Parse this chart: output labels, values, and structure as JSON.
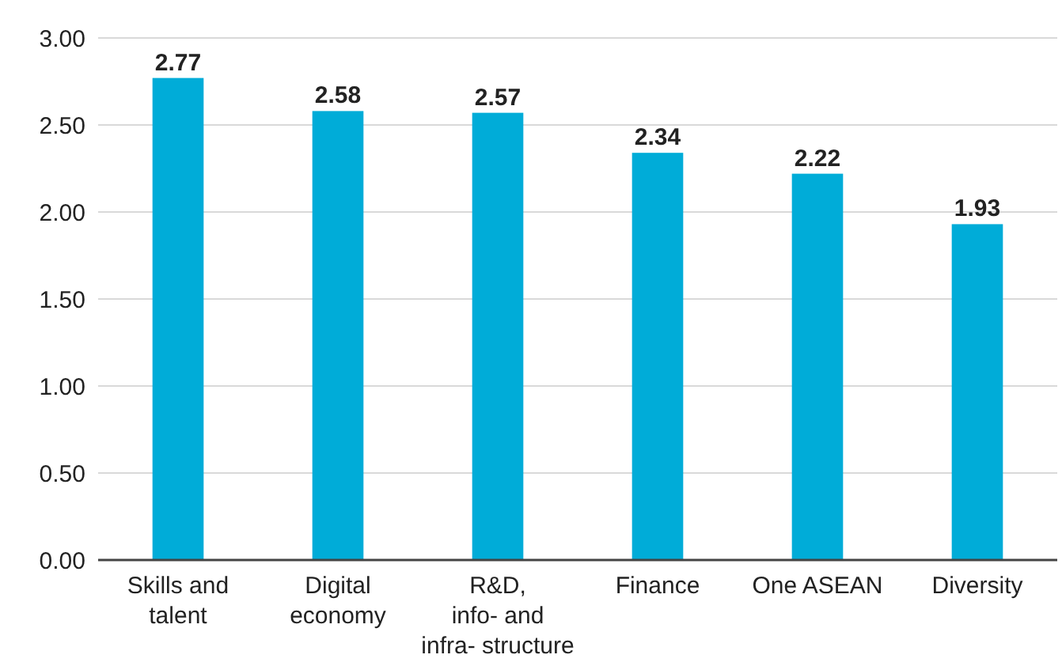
{
  "chart_data": {
    "type": "bar",
    "categories": [
      "Skills and\ntalent",
      "Digital\neconomy",
      "R&D,\ninfo- and\ninfra- structure",
      "Finance",
      "One ASEAN",
      "Diversity"
    ],
    "values": [
      2.77,
      2.58,
      2.57,
      2.34,
      2.22,
      1.93
    ],
    "color": "#00acd8",
    "data_labels": true,
    "grid": "y",
    "ylim": [
      0,
      3
    ],
    "yticks": [
      {
        "value": 0,
        "label": "0.00"
      },
      {
        "value": 0.5,
        "label": "0.50"
      },
      {
        "value": 1,
        "label": "1.00"
      },
      {
        "value": 1.5,
        "label": "1.50"
      },
      {
        "value": 2,
        "label": "2.00"
      },
      {
        "value": 2.5,
        "label": "2.50"
      },
      {
        "value": 3,
        "label": "3.00"
      }
    ]
  }
}
